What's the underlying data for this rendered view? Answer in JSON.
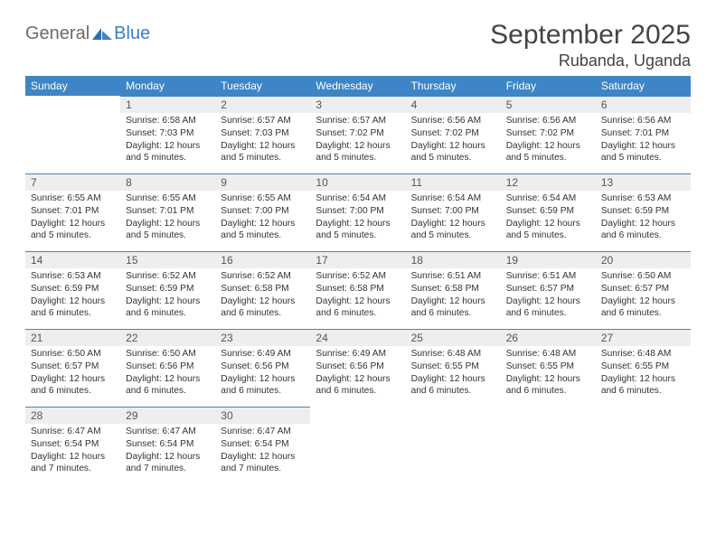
{
  "logo": {
    "part1": "General",
    "part2": "Blue"
  },
  "title": "September 2025",
  "location": "Rubanda, Uganda",
  "colors": {
    "header_bg": "#3d85c6",
    "header_fg": "#ffffff",
    "daynum_bg": "#eeeeee",
    "daynum_border": "#3d85c6",
    "text": "#333333",
    "title_text": "#444444",
    "logo_gray": "#6b6b6b",
    "logo_blue": "#3d7cc9"
  },
  "weekdays": [
    "Sunday",
    "Monday",
    "Tuesday",
    "Wednesday",
    "Thursday",
    "Friday",
    "Saturday"
  ],
  "weeks": [
    [
      null,
      {
        "n": "1",
        "sr": "Sunrise: 6:58 AM",
        "ss": "Sunset: 7:03 PM",
        "dl": "Daylight: 12 hours and 5 minutes."
      },
      {
        "n": "2",
        "sr": "Sunrise: 6:57 AM",
        "ss": "Sunset: 7:03 PM",
        "dl": "Daylight: 12 hours and 5 minutes."
      },
      {
        "n": "3",
        "sr": "Sunrise: 6:57 AM",
        "ss": "Sunset: 7:02 PM",
        "dl": "Daylight: 12 hours and 5 minutes."
      },
      {
        "n": "4",
        "sr": "Sunrise: 6:56 AM",
        "ss": "Sunset: 7:02 PM",
        "dl": "Daylight: 12 hours and 5 minutes."
      },
      {
        "n": "5",
        "sr": "Sunrise: 6:56 AM",
        "ss": "Sunset: 7:02 PM",
        "dl": "Daylight: 12 hours and 5 minutes."
      },
      {
        "n": "6",
        "sr": "Sunrise: 6:56 AM",
        "ss": "Sunset: 7:01 PM",
        "dl": "Daylight: 12 hours and 5 minutes."
      }
    ],
    [
      {
        "n": "7",
        "sr": "Sunrise: 6:55 AM",
        "ss": "Sunset: 7:01 PM",
        "dl": "Daylight: 12 hours and 5 minutes."
      },
      {
        "n": "8",
        "sr": "Sunrise: 6:55 AM",
        "ss": "Sunset: 7:01 PM",
        "dl": "Daylight: 12 hours and 5 minutes."
      },
      {
        "n": "9",
        "sr": "Sunrise: 6:55 AM",
        "ss": "Sunset: 7:00 PM",
        "dl": "Daylight: 12 hours and 5 minutes."
      },
      {
        "n": "10",
        "sr": "Sunrise: 6:54 AM",
        "ss": "Sunset: 7:00 PM",
        "dl": "Daylight: 12 hours and 5 minutes."
      },
      {
        "n": "11",
        "sr": "Sunrise: 6:54 AM",
        "ss": "Sunset: 7:00 PM",
        "dl": "Daylight: 12 hours and 5 minutes."
      },
      {
        "n": "12",
        "sr": "Sunrise: 6:54 AM",
        "ss": "Sunset: 6:59 PM",
        "dl": "Daylight: 12 hours and 5 minutes."
      },
      {
        "n": "13",
        "sr": "Sunrise: 6:53 AM",
        "ss": "Sunset: 6:59 PM",
        "dl": "Daylight: 12 hours and 6 minutes."
      }
    ],
    [
      {
        "n": "14",
        "sr": "Sunrise: 6:53 AM",
        "ss": "Sunset: 6:59 PM",
        "dl": "Daylight: 12 hours and 6 minutes."
      },
      {
        "n": "15",
        "sr": "Sunrise: 6:52 AM",
        "ss": "Sunset: 6:59 PM",
        "dl": "Daylight: 12 hours and 6 minutes."
      },
      {
        "n": "16",
        "sr": "Sunrise: 6:52 AM",
        "ss": "Sunset: 6:58 PM",
        "dl": "Daylight: 12 hours and 6 minutes."
      },
      {
        "n": "17",
        "sr": "Sunrise: 6:52 AM",
        "ss": "Sunset: 6:58 PM",
        "dl": "Daylight: 12 hours and 6 minutes."
      },
      {
        "n": "18",
        "sr": "Sunrise: 6:51 AM",
        "ss": "Sunset: 6:58 PM",
        "dl": "Daylight: 12 hours and 6 minutes."
      },
      {
        "n": "19",
        "sr": "Sunrise: 6:51 AM",
        "ss": "Sunset: 6:57 PM",
        "dl": "Daylight: 12 hours and 6 minutes."
      },
      {
        "n": "20",
        "sr": "Sunrise: 6:50 AM",
        "ss": "Sunset: 6:57 PM",
        "dl": "Daylight: 12 hours and 6 minutes."
      }
    ],
    [
      {
        "n": "21",
        "sr": "Sunrise: 6:50 AM",
        "ss": "Sunset: 6:57 PM",
        "dl": "Daylight: 12 hours and 6 minutes."
      },
      {
        "n": "22",
        "sr": "Sunrise: 6:50 AM",
        "ss": "Sunset: 6:56 PM",
        "dl": "Daylight: 12 hours and 6 minutes."
      },
      {
        "n": "23",
        "sr": "Sunrise: 6:49 AM",
        "ss": "Sunset: 6:56 PM",
        "dl": "Daylight: 12 hours and 6 minutes."
      },
      {
        "n": "24",
        "sr": "Sunrise: 6:49 AM",
        "ss": "Sunset: 6:56 PM",
        "dl": "Daylight: 12 hours and 6 minutes."
      },
      {
        "n": "25",
        "sr": "Sunrise: 6:48 AM",
        "ss": "Sunset: 6:55 PM",
        "dl": "Daylight: 12 hours and 6 minutes."
      },
      {
        "n": "26",
        "sr": "Sunrise: 6:48 AM",
        "ss": "Sunset: 6:55 PM",
        "dl": "Daylight: 12 hours and 6 minutes."
      },
      {
        "n": "27",
        "sr": "Sunrise: 6:48 AM",
        "ss": "Sunset: 6:55 PM",
        "dl": "Daylight: 12 hours and 6 minutes."
      }
    ],
    [
      {
        "n": "28",
        "sr": "Sunrise: 6:47 AM",
        "ss": "Sunset: 6:54 PM",
        "dl": "Daylight: 12 hours and 7 minutes."
      },
      {
        "n": "29",
        "sr": "Sunrise: 6:47 AM",
        "ss": "Sunset: 6:54 PM",
        "dl": "Daylight: 12 hours and 7 minutes."
      },
      {
        "n": "30",
        "sr": "Sunrise: 6:47 AM",
        "ss": "Sunset: 6:54 PM",
        "dl": "Daylight: 12 hours and 7 minutes."
      },
      null,
      null,
      null,
      null
    ]
  ]
}
